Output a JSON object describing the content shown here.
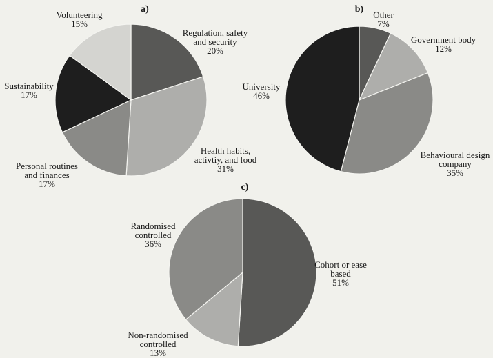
{
  "chart_data": [
    {
      "type": "pie",
      "panel_label": "a)",
      "slices": [
        {
          "name": "Regulation, safety\nand security",
          "value": 20,
          "pct_label": "20%",
          "color": "#585856"
        },
        {
          "name": "Health habits,\nactivtiy, and food",
          "value": 31,
          "pct_label": "31%",
          "color": "#aeaeab"
        },
        {
          "name": "Personal routines\nand finances",
          "value": 17,
          "pct_label": "17%",
          "color": "#8a8a87"
        },
        {
          "name": "Sustainability",
          "value": 17,
          "pct_label": "17%",
          "color": "#1e1e1e"
        },
        {
          "name": "Volunteering",
          "value": 15,
          "pct_label": "15%",
          "color": "#d4d4d0"
        }
      ]
    },
    {
      "type": "pie",
      "panel_label": "b)",
      "slices": [
        {
          "name": "Other",
          "value": 7,
          "pct_label": "7%",
          "color": "#585856"
        },
        {
          "name": "Government body",
          "value": 12,
          "pct_label": "12%",
          "color": "#aeaeab"
        },
        {
          "name": "Behavioural design\ncompany",
          "value": 35,
          "pct_label": "35%",
          "color": "#8a8a87"
        },
        {
          "name": "University",
          "value": 46,
          "pct_label": "46%",
          "color": "#1e1e1e"
        }
      ]
    },
    {
      "type": "pie",
      "panel_label": "c)",
      "slices": [
        {
          "name": "Cohort or ease\nbased",
          "value": 51,
          "pct_label": "51%",
          "color": "#585856"
        },
        {
          "name": "Non-randomised\ncontrolled",
          "value": 13,
          "pct_label": "13%",
          "color": "#aeaeab"
        },
        {
          "name": "Randomised\ncontrolled",
          "value": 36,
          "pct_label": "36%",
          "color": "#8a8a87"
        }
      ]
    }
  ]
}
